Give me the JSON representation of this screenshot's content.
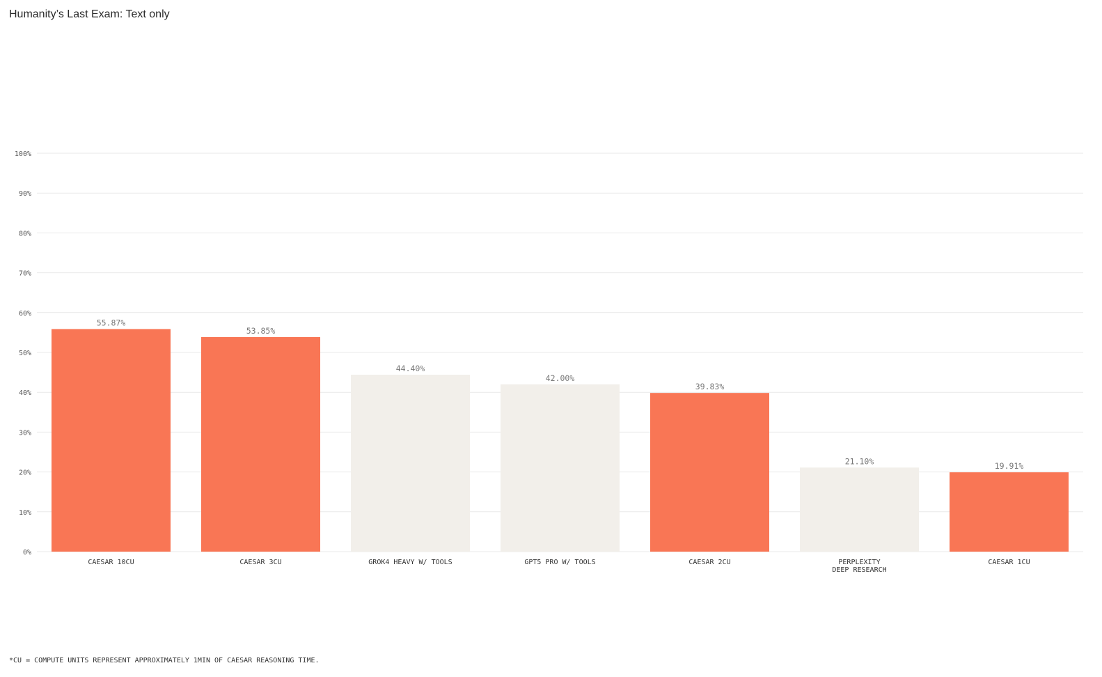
{
  "title": "Humanity’s Last Exam: Text only",
  "footnote": "*CU = COMPUTE UNITS REPRESENT APPROXIMATELY 1MIN OF CAESAR REASONING TIME.",
  "colors": {
    "highlight": "#f97655",
    "neutral": "#f2efea",
    "grid": "#e9e9e9",
    "tick_text": "#555555",
    "value_text": "#777777",
    "label_text": "#333333"
  },
  "chart_data": {
    "type": "bar",
    "title": "Humanity’s Last Exam: Text only",
    "xlabel": "",
    "ylabel": "",
    "ylim": [
      0,
      100
    ],
    "grid": true,
    "y_ticks": [
      "0%",
      "10%",
      "20%",
      "30%",
      "40%",
      "50%",
      "60%",
      "70%",
      "80%",
      "90%",
      "100%"
    ],
    "categories": [
      [
        "CAESAR 10CU"
      ],
      [
        "CAESAR 3CU"
      ],
      [
        "GROK4 HEAVY W/ TOOLS"
      ],
      [
        "GPT5 PRO W/ TOOLS"
      ],
      [
        "CAESAR 2CU"
      ],
      [
        "PERPLEXITY",
        "DEEP RESEARCH"
      ],
      [
        "CAESAR 1CU"
      ]
    ],
    "values": [
      55.87,
      53.85,
      44.4,
      42.0,
      39.83,
      21.1,
      19.91
    ],
    "value_labels": [
      "55.87%",
      "53.85%",
      "44.40%",
      "42.00%",
      "39.83%",
      "21.10%",
      "19.91%"
    ],
    "highlighted": [
      true,
      true,
      false,
      false,
      true,
      false,
      true
    ]
  }
}
